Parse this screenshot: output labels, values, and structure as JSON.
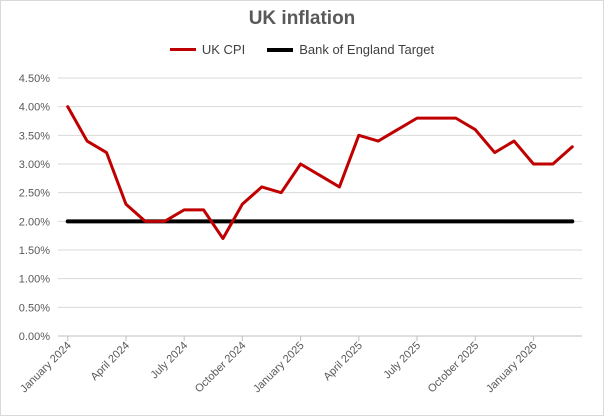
{
  "chart_data": {
    "type": "line",
    "title": "UK inflation",
    "x_tick_labels": [
      "January 2024",
      "April 2024",
      "July 2024",
      "October 2024",
      "January 2025",
      "April 2025",
      "July 2025",
      "October 2025",
      "January 2026"
    ],
    "x": [
      "2024-01",
      "2024-02",
      "2024-03",
      "2024-04",
      "2024-05",
      "2024-06",
      "2024-07",
      "2024-08",
      "2024-09",
      "2024-10",
      "2024-11",
      "2024-12",
      "2025-01",
      "2025-02",
      "2025-03",
      "2025-04",
      "2025-05",
      "2025-06",
      "2025-07",
      "2025-08",
      "2025-09",
      "2025-10",
      "2025-11",
      "2025-12",
      "2026-01",
      "2026-02",
      "2026-03"
    ],
    "series": [
      {
        "name": "UK CPI",
        "color": "#c00000",
        "values": [
          4.0,
          3.4,
          3.2,
          2.3,
          2.0,
          2.0,
          2.2,
          2.2,
          1.7,
          2.3,
          2.6,
          2.5,
          3.0,
          2.8,
          2.6,
          3.5,
          3.4,
          3.6,
          3.8,
          3.8,
          3.8,
          3.6,
          3.2,
          3.4,
          3.0,
          3.0,
          3.3
        ]
      },
      {
        "name": "Bank of England Target",
        "color": "#000000",
        "values": [
          2.0,
          2.0,
          2.0,
          2.0,
          2.0,
          2.0,
          2.0,
          2.0,
          2.0,
          2.0,
          2.0,
          2.0,
          2.0,
          2.0,
          2.0,
          2.0,
          2.0,
          2.0,
          2.0,
          2.0,
          2.0,
          2.0,
          2.0,
          2.0,
          2.0,
          2.0,
          2.0
        ]
      }
    ],
    "y_tick_labels": [
      "0.00%",
      "0.50%",
      "1.00%",
      "1.50%",
      "2.00%",
      "2.50%",
      "3.00%",
      "3.50%",
      "4.00%",
      "4.50%"
    ],
    "ylim": [
      0,
      4.5
    ],
    "xlabel": "",
    "ylabel": "",
    "grid": true,
    "legend_position": "top"
  }
}
